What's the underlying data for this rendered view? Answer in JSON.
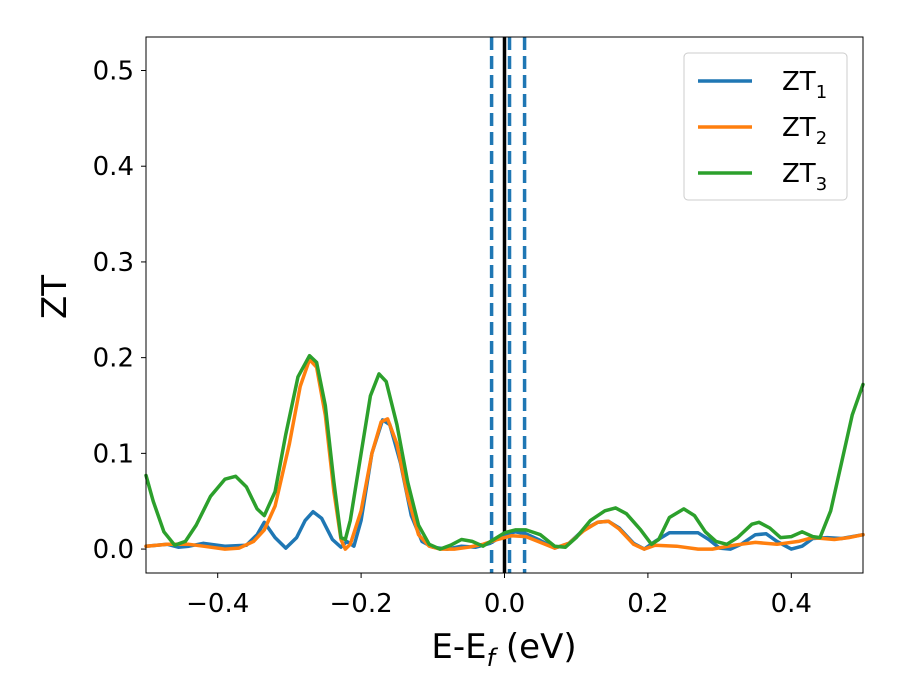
{
  "chart_data": {
    "type": "line",
    "xlabel": "E-E",
    "xlabel_sub": "f",
    "xlabel_unit": " (eV)",
    "ylabel": "ZT",
    "xlim": [
      -0.5,
      0.5
    ],
    "ylim": [
      -0.025,
      0.535
    ],
    "xticks": [
      -0.4,
      -0.2,
      0.0,
      0.2,
      0.4
    ],
    "xtick_labels": [
      "−0.4",
      "−0.2",
      "0.0",
      "0.2",
      "0.4"
    ],
    "yticks": [
      0.0,
      0.1,
      0.2,
      0.3,
      0.4,
      0.5
    ],
    "ytick_labels": [
      "0.0",
      "0.1",
      "0.2",
      "0.3",
      "0.4",
      "0.5"
    ],
    "grid": false,
    "legend_position": "top-right",
    "vlines": [
      {
        "x": 0.0,
        "style": "solid",
        "color": "#000000"
      },
      {
        "x": -0.018,
        "style": "dashed",
        "color": "#1f77b4"
      },
      {
        "x": 0.007,
        "style": "dashed",
        "color": "#1f77b4"
      },
      {
        "x": 0.028,
        "style": "dashed",
        "color": "#1f77b4"
      }
    ],
    "series": [
      {
        "name": "ZT",
        "name_sub": "1",
        "color": "#1f77b4",
        "points": [
          [
            -0.5,
            0.003
          ],
          [
            -0.47,
            0.005
          ],
          [
            -0.455,
            0.002
          ],
          [
            -0.44,
            0.003
          ],
          [
            -0.42,
            0.006
          ],
          [
            -0.39,
            0.003
          ],
          [
            -0.36,
            0.004
          ],
          [
            -0.345,
            0.015
          ],
          [
            -0.335,
            0.028
          ],
          [
            -0.32,
            0.012
          ],
          [
            -0.305,
            0.001
          ],
          [
            -0.29,
            0.012
          ],
          [
            -0.278,
            0.03
          ],
          [
            -0.267,
            0.039
          ],
          [
            -0.255,
            0.032
          ],
          [
            -0.24,
            0.01
          ],
          [
            -0.228,
            0.002
          ],
          [
            -0.22,
            0.008
          ],
          [
            -0.21,
            0.003
          ],
          [
            -0.2,
            0.03
          ],
          [
            -0.185,
            0.1
          ],
          [
            -0.17,
            0.135
          ],
          [
            -0.16,
            0.13
          ],
          [
            -0.145,
            0.09
          ],
          [
            -0.13,
            0.035
          ],
          [
            -0.115,
            0.008
          ],
          [
            -0.1,
            0.002
          ],
          [
            -0.08,
            0.0
          ],
          [
            -0.06,
            0.003
          ],
          [
            -0.04,
            0.002
          ],
          [
            -0.02,
            0.006
          ],
          [
            0.0,
            0.015
          ],
          [
            0.015,
            0.018
          ],
          [
            0.03,
            0.016
          ],
          [
            0.05,
            0.009
          ],
          [
            0.07,
            0.001
          ],
          [
            0.09,
            0.006
          ],
          [
            0.11,
            0.02
          ],
          [
            0.13,
            0.028
          ],
          [
            0.145,
            0.029
          ],
          [
            0.16,
            0.022
          ],
          [
            0.18,
            0.006
          ],
          [
            0.195,
            0.0
          ],
          [
            0.21,
            0.008
          ],
          [
            0.23,
            0.017
          ],
          [
            0.25,
            0.017
          ],
          [
            0.27,
            0.017
          ],
          [
            0.285,
            0.01
          ],
          [
            0.3,
            0.001
          ],
          [
            0.315,
            0.0
          ],
          [
            0.33,
            0.005
          ],
          [
            0.35,
            0.015
          ],
          [
            0.365,
            0.016
          ],
          [
            0.38,
            0.008
          ],
          [
            0.4,
            0.0
          ],
          [
            0.415,
            0.003
          ],
          [
            0.43,
            0.011
          ],
          [
            0.45,
            0.012
          ],
          [
            0.47,
            0.011
          ],
          [
            0.5,
            0.015
          ]
        ]
      },
      {
        "name": "ZT",
        "name_sub": "2",
        "color": "#ff7f0e",
        "points": [
          [
            -0.5,
            0.003
          ],
          [
            -0.47,
            0.005
          ],
          [
            -0.44,
            0.005
          ],
          [
            -0.42,
            0.003
          ],
          [
            -0.39,
            0.0
          ],
          [
            -0.37,
            0.001
          ],
          [
            -0.35,
            0.008
          ],
          [
            -0.335,
            0.02
          ],
          [
            -0.32,
            0.045
          ],
          [
            -0.3,
            0.11
          ],
          [
            -0.285,
            0.17
          ],
          [
            -0.272,
            0.198
          ],
          [
            -0.262,
            0.19
          ],
          [
            -0.25,
            0.14
          ],
          [
            -0.238,
            0.06
          ],
          [
            -0.228,
            0.01
          ],
          [
            -0.222,
            0.0
          ],
          [
            -0.215,
            0.005
          ],
          [
            -0.2,
            0.04
          ],
          [
            -0.185,
            0.1
          ],
          [
            -0.172,
            0.133
          ],
          [
            -0.163,
            0.136
          ],
          [
            -0.15,
            0.11
          ],
          [
            -0.135,
            0.055
          ],
          [
            -0.12,
            0.015
          ],
          [
            -0.105,
            0.003
          ],
          [
            -0.09,
            0.0
          ],
          [
            -0.07,
            0.0
          ],
          [
            -0.05,
            0.002
          ],
          [
            -0.03,
            0.005
          ],
          [
            -0.01,
            0.01
          ],
          [
            0.01,
            0.014
          ],
          [
            0.03,
            0.013
          ],
          [
            0.05,
            0.007
          ],
          [
            0.07,
            0.001
          ],
          [
            0.09,
            0.006
          ],
          [
            0.11,
            0.019
          ],
          [
            0.13,
            0.028
          ],
          [
            0.145,
            0.029
          ],
          [
            0.16,
            0.021
          ],
          [
            0.18,
            0.005
          ],
          [
            0.195,
            0.0
          ],
          [
            0.21,
            0.004
          ],
          [
            0.24,
            0.003
          ],
          [
            0.27,
            0.0
          ],
          [
            0.29,
            0.0
          ],
          [
            0.32,
            0.004
          ],
          [
            0.35,
            0.007
          ],
          [
            0.38,
            0.005
          ],
          [
            0.41,
            0.008
          ],
          [
            0.43,
            0.012
          ],
          [
            0.46,
            0.01
          ],
          [
            0.48,
            0.012
          ],
          [
            0.5,
            0.015
          ]
        ]
      },
      {
        "name": "ZT",
        "name_sub": "3",
        "color": "#2ca02c",
        "points": [
          [
            -0.5,
            0.077
          ],
          [
            -0.49,
            0.05
          ],
          [
            -0.475,
            0.018
          ],
          [
            -0.46,
            0.004
          ],
          [
            -0.445,
            0.008
          ],
          [
            -0.43,
            0.025
          ],
          [
            -0.41,
            0.055
          ],
          [
            -0.39,
            0.073
          ],
          [
            -0.375,
            0.076
          ],
          [
            -0.36,
            0.065
          ],
          [
            -0.345,
            0.042
          ],
          [
            -0.335,
            0.035
          ],
          [
            -0.32,
            0.06
          ],
          [
            -0.305,
            0.12
          ],
          [
            -0.288,
            0.18
          ],
          [
            -0.272,
            0.202
          ],
          [
            -0.262,
            0.195
          ],
          [
            -0.25,
            0.15
          ],
          [
            -0.238,
            0.07
          ],
          [
            -0.228,
            0.012
          ],
          [
            -0.222,
            0.01
          ],
          [
            -0.215,
            0.03
          ],
          [
            -0.2,
            0.1
          ],
          [
            -0.187,
            0.16
          ],
          [
            -0.175,
            0.183
          ],
          [
            -0.165,
            0.175
          ],
          [
            -0.15,
            0.13
          ],
          [
            -0.135,
            0.07
          ],
          [
            -0.12,
            0.025
          ],
          [
            -0.105,
            0.005
          ],
          [
            -0.09,
            0.0
          ],
          [
            -0.075,
            0.004
          ],
          [
            -0.06,
            0.01
          ],
          [
            -0.045,
            0.008
          ],
          [
            -0.03,
            0.003
          ],
          [
            -0.015,
            0.01
          ],
          [
            0.0,
            0.017
          ],
          [
            0.015,
            0.02
          ],
          [
            0.03,
            0.02
          ],
          [
            0.05,
            0.015
          ],
          [
            0.07,
            0.003
          ],
          [
            0.085,
            0.002
          ],
          [
            0.1,
            0.012
          ],
          [
            0.12,
            0.03
          ],
          [
            0.14,
            0.04
          ],
          [
            0.155,
            0.043
          ],
          [
            0.17,
            0.037
          ],
          [
            0.19,
            0.02
          ],
          [
            0.205,
            0.005
          ],
          [
            0.215,
            0.01
          ],
          [
            0.23,
            0.033
          ],
          [
            0.25,
            0.042
          ],
          [
            0.265,
            0.035
          ],
          [
            0.28,
            0.018
          ],
          [
            0.295,
            0.008
          ],
          [
            0.31,
            0.005
          ],
          [
            0.325,
            0.012
          ],
          [
            0.345,
            0.026
          ],
          [
            0.355,
            0.028
          ],
          [
            0.37,
            0.022
          ],
          [
            0.385,
            0.012
          ],
          [
            0.4,
            0.013
          ],
          [
            0.415,
            0.018
          ],
          [
            0.43,
            0.013
          ],
          [
            0.44,
            0.012
          ],
          [
            0.455,
            0.04
          ],
          [
            0.47,
            0.09
          ],
          [
            0.485,
            0.14
          ],
          [
            0.5,
            0.172
          ]
        ]
      }
    ]
  }
}
